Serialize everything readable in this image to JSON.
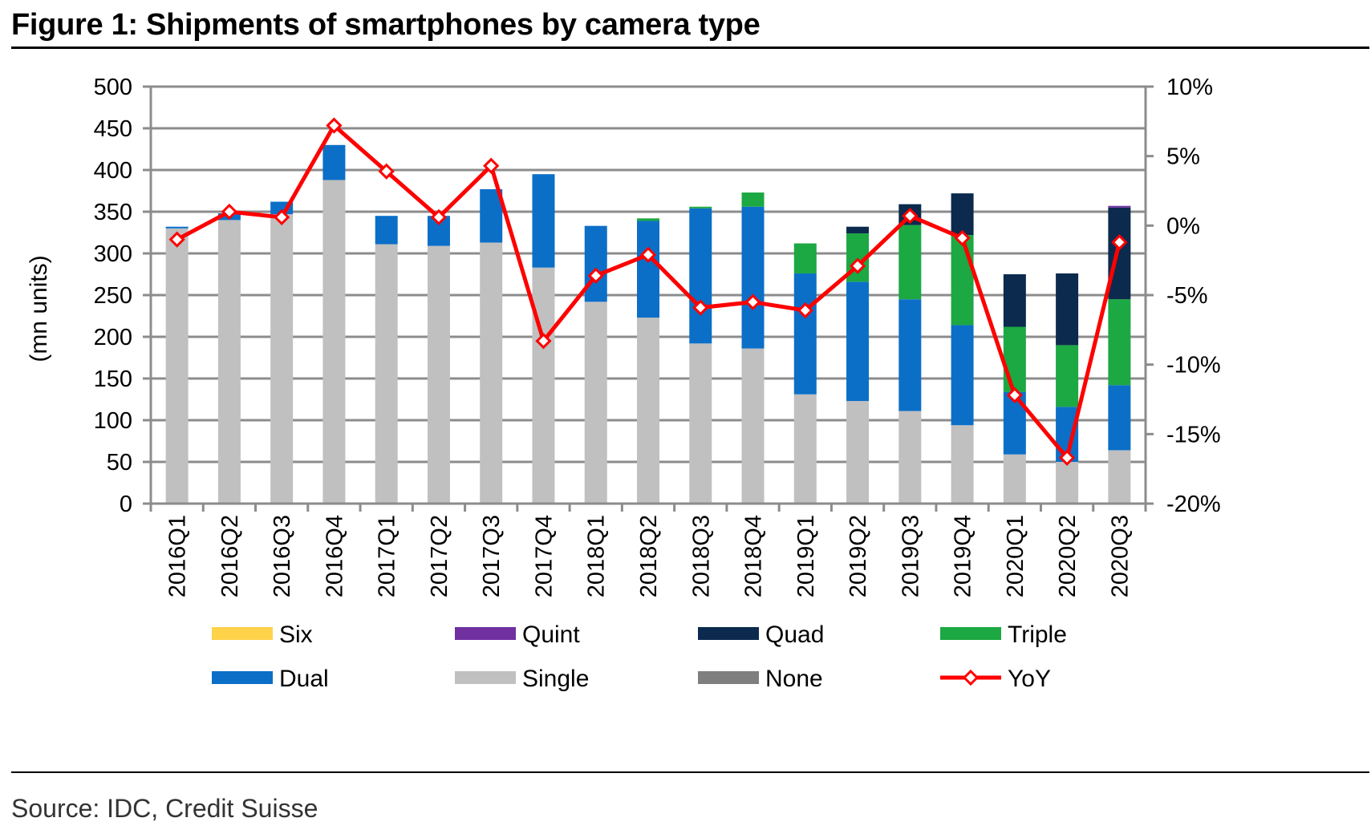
{
  "header": {
    "title": "Figure 1: Shipments of smartphones by camera type"
  },
  "footer": {
    "source": "Source: IDC, Credit Suisse"
  },
  "chart_data": {
    "type": "bar",
    "stacked": true,
    "title": "Figure 1: Shipments of smartphones by camera type",
    "ylabel": "(mn units)",
    "ylim": [
      0,
      500
    ],
    "yticks": [
      "0",
      "50",
      "100",
      "150",
      "200",
      "250",
      "300",
      "350",
      "400",
      "450",
      "500"
    ],
    "y2lim": [
      -20,
      10
    ],
    "y2ticks": [
      "-20%",
      "-15%",
      "-10%",
      "-5%",
      "0%",
      "5%",
      "10%"
    ],
    "grid": true,
    "legend_position": "bottom",
    "categories": [
      "2016Q1",
      "2016Q2",
      "2016Q3",
      "2016Q4",
      "2017Q1",
      "2017Q2",
      "2017Q3",
      "2017Q4",
      "2018Q1",
      "2018Q2",
      "2018Q3",
      "2018Q4",
      "2019Q1",
      "2019Q2",
      "2019Q3",
      "2019Q4",
      "2020Q1",
      "2020Q2",
      "2020Q3"
    ],
    "series": [
      {
        "name": "Six",
        "color": "#ffd24a",
        "values": [
          0,
          0,
          0,
          0,
          0,
          0,
          0,
          0,
          0,
          0,
          0,
          0,
          0,
          0,
          0,
          0,
          0,
          0,
          0
        ]
      },
      {
        "name": "Quint",
        "color": "#7030a0",
        "values": [
          0,
          0,
          0,
          0,
          0,
          0,
          0,
          0,
          0,
          0,
          0,
          0,
          0,
          0,
          0,
          0,
          0,
          0,
          2
        ]
      },
      {
        "name": "Quad",
        "color": "#0c2a4d",
        "values": [
          0,
          0,
          0,
          0,
          0,
          0,
          0,
          0,
          0,
          0,
          0,
          0,
          0,
          8,
          25,
          50,
          63,
          86,
          110
        ]
      },
      {
        "name": "Triple",
        "color": "#1ca843",
        "values": [
          0,
          0,
          0,
          0,
          0,
          0,
          0,
          0,
          0,
          3,
          2,
          17,
          36,
          58,
          89,
          108,
          78,
          74,
          103
        ]
      },
      {
        "name": "Dual",
        "color": "#0b6fc8",
        "values": [
          2,
          8,
          15,
          42,
          34,
          36,
          64,
          112,
          91,
          116,
          162,
          170,
          145,
          143,
          134,
          120,
          75,
          66,
          78
        ]
      },
      {
        "name": "Single",
        "color": "#c0c0c0",
        "values": [
          330,
          340,
          347,
          388,
          311,
          309,
          313,
          283,
          242,
          223,
          192,
          186,
          131,
          123,
          111,
          94,
          59,
          50,
          64
        ]
      },
      {
        "name": "None",
        "color": "#7f7f7f",
        "values": [
          0,
          0,
          0,
          0,
          0,
          0,
          0,
          0,
          0,
          0,
          0,
          0,
          0,
          0,
          0,
          0,
          0,
          0,
          0
        ]
      }
    ],
    "line_series": {
      "name": "YoY",
      "color": "#ff0000",
      "axis": "secondary",
      "values": [
        -1.0,
        1.0,
        0.6,
        7.2,
        3.9,
        0.6,
        4.3,
        -8.3,
        -3.6,
        -2.1,
        -5.9,
        -5.5,
        -6.1,
        -2.9,
        0.7,
        -0.9,
        -12.2,
        -16.7,
        -1.2
      ]
    },
    "legend": [
      "Six",
      "Quint",
      "Quad",
      "Triple",
      "Dual",
      "Single",
      "None",
      "YoY"
    ]
  }
}
